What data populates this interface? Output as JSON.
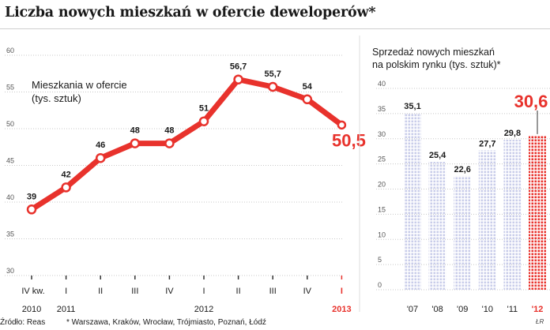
{
  "title": "Liczba nowych mieszkań w ofercie deweloperów*",
  "footer": {
    "source": "Źródło: Reas",
    "footnote": "* Warszawa, Kraków, Wrocław, Trójmiasto, Poznań, Łódź",
    "signature": "ŁR"
  },
  "colors": {
    "line": "#e8322c",
    "highlight": "#e8322c",
    "bar": "#c9cdea",
    "bar_highlight": "#e8322c",
    "marker_fill": "#ffffff",
    "grid": "#c8c8c8",
    "text": "#1a1a1a"
  },
  "chart_data": [
    {
      "type": "line",
      "annotation": "Mieszkania w ofercie\n(tys. sztuk)",
      "ylim": [
        30,
        60
      ],
      "yticks": [
        30,
        35,
        40,
        45,
        50,
        55,
        60
      ],
      "grid": true,
      "categories": [
        "IV kw.",
        "I",
        "II",
        "III",
        "IV",
        "I",
        "II",
        "III",
        "IV",
        "I"
      ],
      "year_labels": [
        {
          "label": "2010",
          "index": 0
        },
        {
          "label": "2011",
          "index": 1
        },
        {
          "label": "2012",
          "index": 5
        },
        {
          "label": "2013",
          "index": 9
        }
      ],
      "series": [
        {
          "values": [
            39,
            42,
            46,
            48,
            48,
            51,
            56.7,
            55.7,
            54,
            50.5
          ],
          "value_labels": [
            "39",
            "42",
            "46",
            "48",
            "48",
            "51",
            "56,7",
            "55,7",
            "54",
            "50,5"
          ]
        }
      ],
      "highlight_index": 9
    },
    {
      "type": "bar",
      "annotation": "Sprzedaż nowych mieszkań\nna polskim rynku (tys. sztuk)*",
      "ylim": [
        0,
        40
      ],
      "yticks": [
        0,
        5,
        10,
        15,
        20,
        25,
        30,
        35,
        40
      ],
      "grid": true,
      "categories": [
        "'07",
        "'08",
        "'09",
        "'10",
        "'11",
        "'12"
      ],
      "values": [
        35.1,
        25.4,
        22.6,
        27.7,
        29.8,
        30.6
      ],
      "value_labels": [
        "35,1",
        "25,4",
        "22,6",
        "27,7",
        "29,8",
        "30,6"
      ],
      "highlight_index": 5
    }
  ]
}
